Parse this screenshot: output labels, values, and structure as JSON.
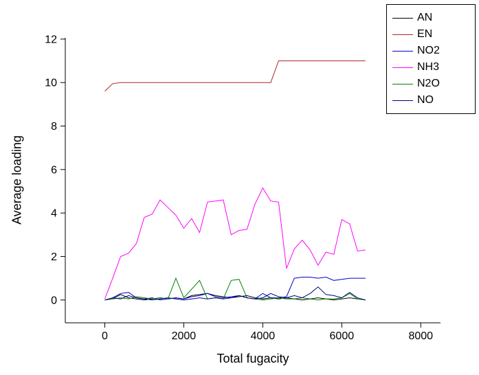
{
  "chart_data": {
    "type": "line",
    "title": "",
    "xlabel": "Total fugacity",
    "ylabel": "Average loading",
    "xlim": [
      -1000,
      8500
    ],
    "ylim": [
      -1.05,
      12.06
    ],
    "xticks": [
      0,
      2000,
      4000,
      6000,
      8000
    ],
    "yticks": [
      0,
      2,
      4,
      6,
      8,
      10,
      12
    ],
    "grid": false,
    "legend_position": "top-right",
    "x": [
      0,
      200,
      400,
      600,
      800,
      1000,
      1200,
      1400,
      1600,
      1800,
      2000,
      2200,
      2400,
      2600,
      2800,
      3000,
      3200,
      3400,
      3600,
      3800,
      4000,
      4200,
      4400,
      4600,
      4800,
      5000,
      5200,
      5400,
      5600,
      5800,
      6000,
      6200,
      6400,
      6600
    ],
    "series": [
      {
        "name": "AN",
        "color": "#000000",
        "values": [
          0,
          0.05,
          0.25,
          0.1,
          0.05,
          0,
          0.05,
          0.1,
          0.05,
          0.1,
          0.05,
          0.2,
          0.25,
          0.3,
          0.2,
          0.15,
          0.1,
          0.15,
          0.2,
          0.1,
          0.05,
          0.1,
          0.05,
          0.1,
          0.05,
          0,
          0.05,
          0.1,
          0.05,
          0,
          0.05,
          0.1,
          0.05,
          0
        ]
      },
      {
        "name": "EN",
        "color": "#b22222",
        "values": [
          9.6,
          9.95,
          10,
          10,
          10,
          10,
          10,
          10,
          10,
          10,
          10,
          10,
          10,
          10,
          10,
          10,
          10,
          10,
          10,
          10,
          10,
          10,
          11,
          11,
          11,
          11,
          11,
          11,
          11,
          11,
          11,
          11,
          11,
          11
        ]
      },
      {
        "name": "NO2",
        "color": "#0000cd",
        "values": [
          0,
          0.1,
          0.3,
          0.35,
          0.1,
          0.05,
          0.1,
          0,
          0.05,
          0.1,
          0.05,
          0.15,
          0.2,
          0.3,
          0.15,
          0.1,
          0.15,
          0.2,
          0.1,
          0.05,
          0.3,
          0.1,
          0.1,
          0.15,
          1.0,
          1.05,
          1.05,
          1.0,
          1.05,
          0.9,
          0.95,
          1.0,
          1.0,
          1.0
        ]
      },
      {
        "name": "NH3",
        "color": "#ff00ff",
        "values": [
          0.05,
          1.0,
          2.0,
          2.15,
          2.6,
          3.8,
          3.95,
          4.6,
          4.25,
          3.9,
          3.3,
          3.75,
          3.1,
          4.5,
          4.55,
          4.6,
          3.0,
          3.2,
          3.25,
          4.4,
          5.15,
          4.55,
          4.5,
          1.45,
          2.35,
          2.75,
          2.3,
          1.6,
          2.2,
          2.1,
          3.7,
          3.5,
          2.25,
          2.3
        ]
      },
      {
        "name": "N2O",
        "color": "#008000",
        "values": [
          0,
          0.05,
          0.1,
          0.05,
          0.15,
          0.1,
          0.05,
          0.1,
          0.05,
          1.0,
          0.1,
          0.5,
          0.9,
          0.05,
          0.1,
          0.05,
          0.9,
          0.95,
          0.1,
          0.05,
          0,
          0.05,
          0.1,
          0.05,
          0.05,
          0.1,
          0.05,
          0,
          0.05,
          0.05,
          0.1,
          0.3,
          0.05,
          0
        ]
      },
      {
        "name": "NO",
        "color": "#000080",
        "values": [
          0,
          0.1,
          0.05,
          0.2,
          0.1,
          0.05,
          0,
          0.05,
          0.1,
          0.05,
          0,
          0.05,
          0.1,
          0.05,
          0.1,
          0.05,
          0.1,
          0.2,
          0.1,
          0.05,
          0.1,
          0.3,
          0.15,
          0.1,
          0.2,
          0.1,
          0.3,
          0.6,
          0.25,
          0.2,
          0.1,
          0.35,
          0.1,
          0
        ]
      }
    ]
  }
}
